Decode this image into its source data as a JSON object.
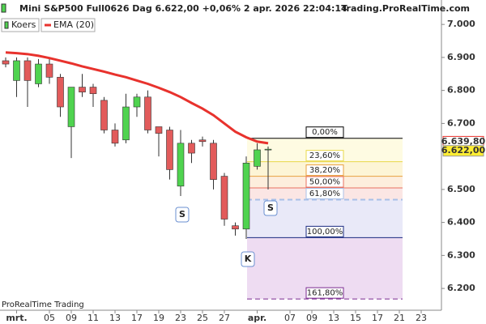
{
  "chart_data": {
    "type": "candlestick",
    "title": "Mini S&P500 Full0626 Dag 6.622,00 +0,06% 2 apr. 2026 22:04:14",
    "source": "Trading.ProRealTime.com",
    "footer": "ProRealTime Trading",
    "categories": [
      null,
      "mrt.",
      null,
      null,
      "05",
      null,
      "09",
      null,
      "11",
      null,
      "13",
      null,
      "17",
      null,
      "19",
      null,
      "23",
      null,
      "25",
      null,
      "27",
      null,
      null,
      "apr.",
      null,
      null,
      "07",
      null,
      "09",
      null,
      "13",
      null,
      "15",
      null,
      "17",
      null,
      "21",
      null,
      "23",
      null
    ],
    "series": [
      {
        "name": "Koers",
        "up_color": "#4fd34f",
        "down_color": "#e25b5b",
        "open": [
          6890,
          6830,
          6890,
          6820,
          6880,
          6840,
          6690,
          6810,
          6810,
          6770,
          6680,
          6650,
          6750,
          6780,
          6690,
          6680,
          6510,
          6640,
          6650,
          6640,
          6540,
          6390,
          6380,
          6570,
          6620,
          null,
          null,
          null,
          null,
          null,
          null,
          null,
          null,
          null,
          null,
          null,
          null,
          null,
          null,
          null
        ],
        "high": [
          6900,
          6900,
          6900,
          6895,
          6900,
          6850,
          6810,
          6850,
          6820,
          6780,
          6700,
          6790,
          6790,
          6800,
          6690,
          6690,
          6680,
          6650,
          6660,
          6650,
          6550,
          6400,
          6600,
          6640,
          6630,
          null,
          null,
          null,
          null,
          null,
          null,
          null,
          null,
          null,
          null,
          null,
          null,
          null,
          null,
          null
        ],
        "low": [
          6870,
          6780,
          6750,
          6810,
          6820,
          6720,
          6595,
          6780,
          6750,
          6670,
          6630,
          6640,
          6720,
          6670,
          6600,
          6530,
          6480,
          6580,
          6630,
          6500,
          6390,
          6360,
          6350,
          6560,
          6500,
          null,
          null,
          null,
          null,
          null,
          null,
          null,
          null,
          null,
          null,
          null,
          null,
          null,
          null,
          null
        ],
        "close": [
          6880,
          6890,
          6830,
          6880,
          6840,
          6750,
          6810,
          6795,
          6790,
          6680,
          6640,
          6750,
          6780,
          6680,
          6670,
          6560,
          6640,
          6610,
          6645,
          6530,
          6410,
          6380,
          6580,
          6620,
          6622,
          null,
          null,
          null,
          null,
          null,
          null,
          null,
          null,
          null,
          null,
          null,
          null,
          null,
          null,
          null
        ]
      },
      {
        "name": "EMA (20)",
        "color": "#e8322d",
        "values": [
          6915,
          6913,
          6910,
          6905,
          6898,
          6890,
          6882,
          6873,
          6865,
          6857,
          6848,
          6840,
          6830,
          6820,
          6808,
          6795,
          6780,
          6762,
          6745,
          6725,
          6700,
          6675,
          6658,
          6645,
          6640,
          null,
          null,
          null,
          null,
          null,
          null,
          null,
          null,
          null,
          null,
          null,
          null,
          null,
          null,
          null
        ]
      }
    ],
    "ylim": [
      6134,
      7074
    ],
    "yticks": [
      {
        "value": 7000,
        "label": "7.000"
      },
      {
        "value": 6900,
        "label": "6.900"
      },
      {
        "value": 6800,
        "label": "6.800"
      },
      {
        "value": 6700,
        "label": "6.700"
      },
      {
        "value": 6500,
        "label": "6.500"
      },
      {
        "value": 6400,
        "label": "6.400"
      },
      {
        "value": 6300,
        "label": "6.300"
      },
      {
        "value": 6200,
        "label": "6.200"
      }
    ],
    "price_tags": [
      {
        "value": 6639.8,
        "label": "6.639,80"
      },
      {
        "value": 6622,
        "label": "6.622,00"
      }
    ],
    "fibonacci": {
      "high": 6655,
      "low": 6354,
      "levels": [
        0,
        23.6,
        38.2,
        50,
        61.8,
        100,
        161.8
      ],
      "value_labels": [
        "0,00%",
        "23,60%",
        "38,20%",
        "50,00%",
        "61,80%",
        "100,00%",
        "161,80%"
      ],
      "level_colors": [
        "#000000",
        "#e8d84a",
        "#e8a040",
        "#e87060",
        "#a8c0e8",
        "#1a2a80",
        "#7a2a90"
      ],
      "zone_colors": [
        "#fefbe2",
        "#fdf5d6",
        "#fdeedd",
        "#fbe6e4",
        "#e9e9f8",
        "#eedcf2"
      ]
    },
    "annotations": [
      "S",
      "S",
      "K"
    ]
  }
}
